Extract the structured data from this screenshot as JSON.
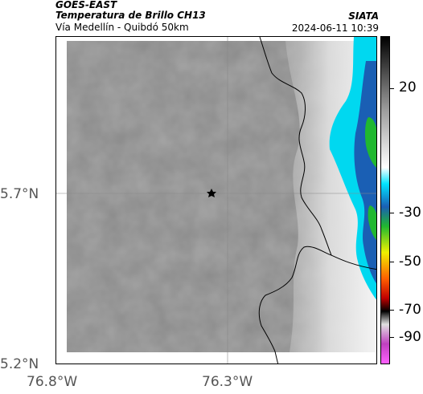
{
  "header": {
    "satellite": "GOES-EAST",
    "product": "Temperatura de Brillo CH13",
    "region": "Vía Medellín - Quibdó 50km",
    "organization": "SIATA",
    "timestamp": "2024-06-11 10:39"
  },
  "axes": {
    "y_ticks": [
      "5.7°N",
      "5.2°N"
    ],
    "x_ticks": [
      "76.8°W",
      "76.3°W"
    ]
  },
  "colorbar": {
    "labels": [
      "20",
      "-30",
      "-50",
      "-70",
      "-90"
    ]
  },
  "map": {
    "marker": "star",
    "colors": {
      "gray_dark": "#7a7a7a",
      "gray_light": "#d8d8d8",
      "cyan": "#00e5ff",
      "blue": "#1a5fb4",
      "green": "#20b830",
      "border": "#000000"
    }
  }
}
